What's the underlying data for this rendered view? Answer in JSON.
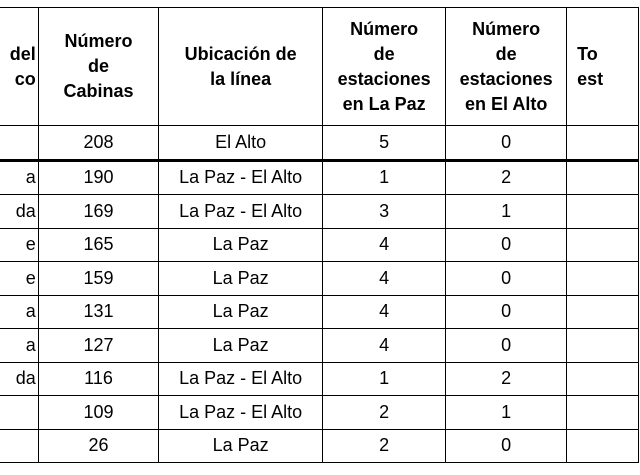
{
  "table": {
    "headers": [
      "del\nco",
      "Número de Cabinas",
      "Ubicación de la línea",
      "Número de estaciones en La Paz",
      "Número de estaciones en El Alto",
      "To\nest"
    ],
    "header_lines": [
      [
        "del",
        "co"
      ],
      [
        "Número",
        "de",
        "Cabinas"
      ],
      [
        "Ubicación de",
        "la línea"
      ],
      [
        "Número",
        "de",
        "estaciones",
        "en La Paz"
      ],
      [
        "Número",
        "de",
        "estaciones",
        "en El Alto"
      ],
      [
        "To",
        "est"
      ]
    ],
    "rows": [
      [
        "",
        "208",
        "El Alto",
        "5",
        "0",
        ""
      ],
      [
        "a",
        "190",
        "La Paz - El Alto",
        "1",
        "2",
        ""
      ],
      [
        "da",
        "169",
        "La Paz - El Alto",
        "3",
        "1",
        ""
      ],
      [
        "e",
        "165",
        "La Paz",
        "4",
        "0",
        ""
      ],
      [
        "e",
        "159",
        "La Paz",
        "4",
        "0",
        ""
      ],
      [
        "a",
        "131",
        "La Paz",
        "4",
        "0",
        ""
      ],
      [
        "a",
        "127",
        "La Paz",
        "4",
        "0",
        ""
      ],
      [
        "da",
        "116",
        "La Paz - El Alto",
        "1",
        "2",
        ""
      ],
      [
        "",
        "109",
        "La Paz - El Alto",
        "2",
        "1",
        ""
      ],
      [
        "",
        "26",
        "La Paz",
        "2",
        "0",
        ""
      ]
    ]
  }
}
